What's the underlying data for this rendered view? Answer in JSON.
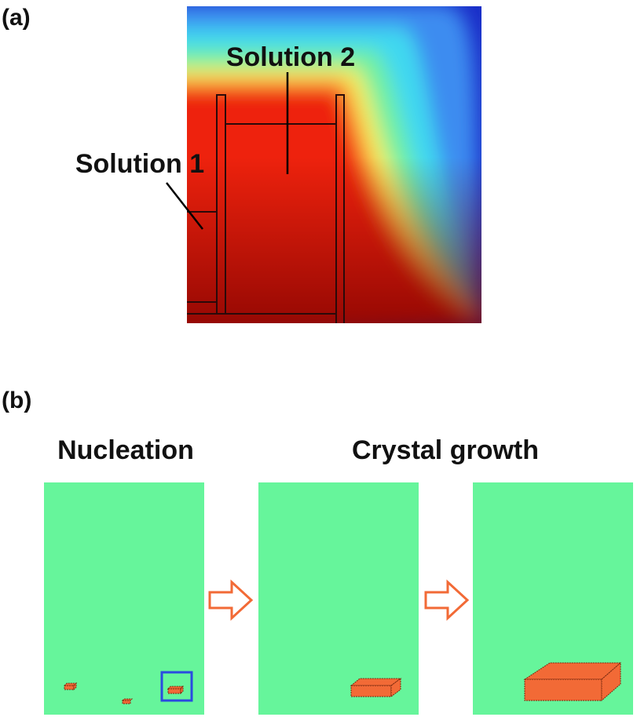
{
  "panel_a": {
    "label": "(a)",
    "annotations": [
      "Solution 2",
      "Solution 1"
    ]
  },
  "panel_b": {
    "label": "(b)",
    "stages": [
      "Nucleation",
      "Crystal growth"
    ]
  }
}
